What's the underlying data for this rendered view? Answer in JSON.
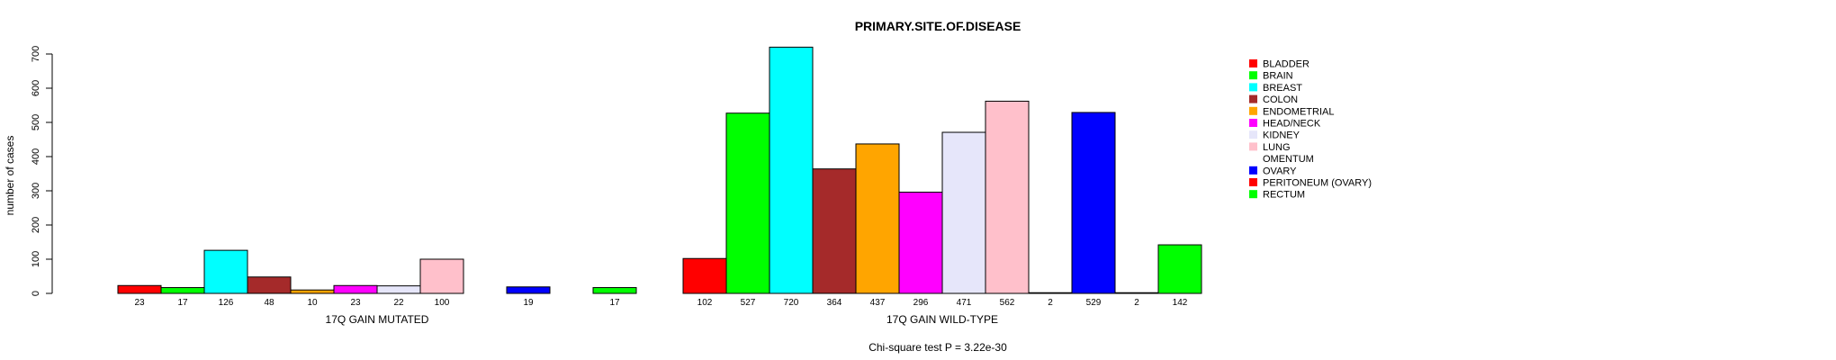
{
  "chart_data": {
    "type": "bar",
    "title": "PRIMARY.SITE.OF.DISEASE",
    "ylabel": "number of cases",
    "ylim": [
      0,
      700
    ],
    "yticks": [
      0,
      100,
      200,
      300,
      400,
      500,
      600,
      700
    ],
    "categories": [
      "BLADDER",
      "BRAIN",
      "BREAST",
      "COLON",
      "ENDOMETRIAL",
      "HEAD/NECK",
      "KIDNEY",
      "LUNG",
      "OMENTUM",
      "OVARY",
      "PERITONEUM (OVARY)",
      "RECTUM"
    ],
    "colors": [
      "#ff0000",
      "#00ff00",
      "#00ffff",
      "#a52a2a",
      "#ffa500",
      "#ff00ff",
      "#e6e6fa",
      "#ffc0cb",
      "#ffffff",
      "#0000ff",
      "#ff0000",
      "#00ff00"
    ],
    "groups": [
      {
        "name": "17Q GAIN MUTATED",
        "values": [
          23,
          17,
          126,
          48,
          10,
          23,
          22,
          100,
          0,
          19,
          0,
          17
        ],
        "labels": [
          "23",
          "17",
          "126",
          "48",
          "10",
          "23",
          "22",
          "100",
          "",
          "19",
          "",
          "17"
        ]
      },
      {
        "name": "17Q GAIN WILD-TYPE",
        "values": [
          102,
          527,
          720,
          364,
          437,
          296,
          471,
          562,
          2,
          529,
          2,
          142
        ],
        "labels": [
          "102",
          "527",
          "720",
          "364",
          "437",
          "296",
          "471",
          "562",
          "2",
          "529",
          "2",
          "142"
        ]
      }
    ],
    "legend": [
      "BLADDER",
      "BRAIN",
      "BREAST",
      "COLON",
      "ENDOMETRIAL",
      "HEAD/NECK",
      "KIDNEY",
      "LUNG",
      "OMENTUM",
      "OVARY",
      "PERITONEUM (OVARY)",
      "RECTUM"
    ],
    "legend_position": "right",
    "footnote": "Chi-square test P = 3.22e-30"
  }
}
